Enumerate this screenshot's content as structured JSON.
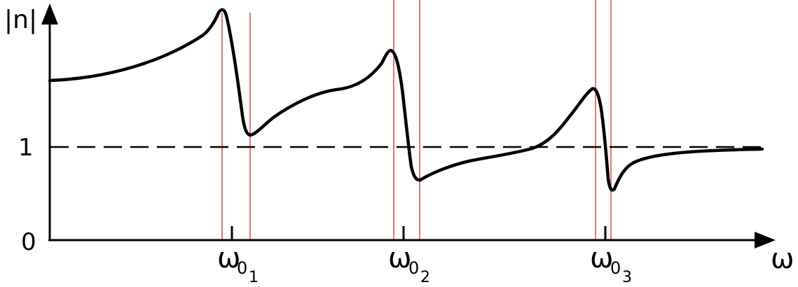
{
  "axes": {
    "y_label": "|n|",
    "x_label": "ω",
    "y_ticks": [
      {
        "label": "1",
        "value": 1
      },
      {
        "label": "0",
        "value": 0
      }
    ],
    "x_ticks": [
      {
        "base": "ω",
        "sub1": "0",
        "sub2": "1"
      },
      {
        "base": "ω",
        "sub1": "0",
        "sub2": "2"
      },
      {
        "base": "ω",
        "sub1": "0",
        "sub2": "3"
      }
    ]
  },
  "colors": {
    "curve": "#000000",
    "axes": "#000000",
    "dashed_reference": "#000000",
    "resonance_markers": "#cc2222"
  },
  "reference_line_value": 1
}
